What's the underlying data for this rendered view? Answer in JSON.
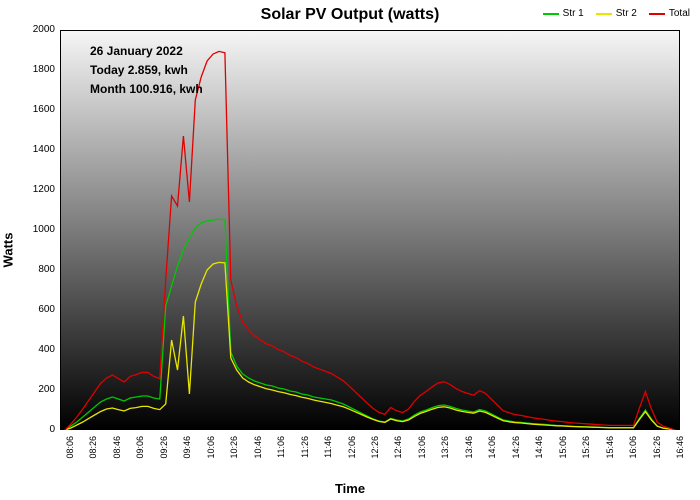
{
  "chart": {
    "type": "line",
    "title": "Solar PV Output (watts)",
    "title_fontsize": 16,
    "xlabel": "Time",
    "ylabel": "Watts",
    "label_fontsize": 13,
    "ylim": [
      0,
      2000
    ],
    "ytick_step": 200,
    "x_ticks": [
      "08:06",
      "08:26",
      "08:46",
      "09:06",
      "09:26",
      "09:46",
      "10:06",
      "10:26",
      "10:46",
      "11:06",
      "11:26",
      "11:46",
      "12:06",
      "12:26",
      "12:46",
      "13:06",
      "13:26",
      "13:46",
      "14:06",
      "14:26",
      "14:46",
      "15:06",
      "15:26",
      "15:46",
      "16:06",
      "16:26",
      "16:46"
    ],
    "background_gradient_top": "#f6f6f6",
    "background_gradient_bottom": "#000000",
    "axis_color": "#000000",
    "annotation": {
      "date": "26 January 2022",
      "today": "Today 2.859, kwh",
      "month": "Month 100.916, kwh"
    },
    "legend": [
      {
        "label": "Str 1",
        "color": "#00c800"
      },
      {
        "label": "Str 2",
        "color": "#e6e600"
      },
      {
        "label": "Total",
        "color": "#e00000"
      }
    ],
    "series": {
      "str1": {
        "color": "#00c800",
        "width": 1.3,
        "data": [
          0,
          20,
          40,
          65,
          90,
          115,
          140,
          155,
          165,
          155,
          145,
          160,
          165,
          170,
          170,
          160,
          155,
          620,
          720,
          820,
          900,
          960,
          1010,
          1035,
          1045,
          1050,
          1055,
          1050,
          390,
          320,
          280,
          260,
          245,
          235,
          225,
          220,
          210,
          205,
          195,
          190,
          180,
          175,
          165,
          160,
          155,
          150,
          140,
          130,
          115,
          100,
          85,
          70,
          55,
          45,
          40,
          58,
          50,
          45,
          55,
          75,
          90,
          100,
          112,
          122,
          125,
          118,
          108,
          100,
          95,
          90,
          102,
          95,
          80,
          65,
          50,
          45,
          40,
          38,
          35,
          32,
          30,
          28,
          25,
          23,
          22,
          20,
          18,
          17,
          16,
          15,
          14,
          13,
          12,
          12,
          12,
          12,
          12,
          58,
          100,
          55,
          20,
          10,
          5,
          0
        ]
      },
      "str2": {
        "color": "#e6e600",
        "width": 1.3,
        "data": [
          0,
          10,
          25,
          40,
          58,
          75,
          92,
          105,
          110,
          102,
          95,
          108,
          112,
          118,
          118,
          108,
          102,
          130,
          450,
          300,
          570,
          180,
          640,
          730,
          800,
          830,
          838,
          836,
          360,
          300,
          260,
          240,
          226,
          216,
          206,
          200,
          192,
          186,
          178,
          172,
          164,
          158,
          150,
          144,
          138,
          132,
          124,
          116,
          104,
          91,
          78,
          65,
          53,
          43,
          38,
          55,
          46,
          42,
          50,
          68,
          83,
          93,
          104,
          113,
          116,
          110,
          100,
          93,
          88,
          84,
          95,
          88,
          74,
          60,
          46,
          41,
          37,
          35,
          32,
          29,
          27,
          25,
          23,
          21,
          20,
          18,
          17,
          16,
          15,
          14,
          13,
          12,
          11,
          11,
          11,
          11,
          11,
          53,
          92,
          51,
          19,
          9,
          5,
          0
        ]
      },
      "total": {
        "color": "#e00000",
        "width": 1.3,
        "data": [
          0,
          30,
          65,
          105,
          148,
          190,
          232,
          260,
          275,
          257,
          240,
          268,
          277,
          288,
          288,
          268,
          257,
          750,
          1170,
          1120,
          1470,
          1140,
          1650,
          1765,
          1845,
          1880,
          1893,
          1886,
          750,
          620,
          540,
          500,
          471,
          451,
          431,
          420,
          402,
          391,
          373,
          362,
          344,
          333,
          315,
          304,
          293,
          282,
          264,
          246,
          219,
          191,
          163,
          135,
          108,
          88,
          78,
          113,
          96,
          87,
          105,
          143,
          173,
          193,
          216,
          235,
          241,
          228,
          208,
          193,
          183,
          174,
          197,
          183,
          154,
          125,
          96,
          86,
          77,
          73,
          67,
          61,
          57,
          53,
          48,
          44,
          42,
          38,
          35,
          33,
          31,
          29,
          27,
          25,
          23,
          23,
          23,
          23,
          23,
          111,
          192,
          106,
          39,
          19,
          10,
          0
        ]
      }
    }
  }
}
